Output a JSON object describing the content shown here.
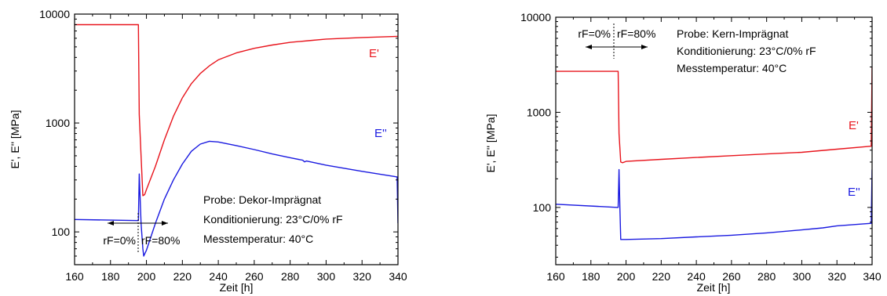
{
  "chart_data": [
    {
      "type": "line",
      "xlabel": "Zeit [h]",
      "ylabel": "E', E'' [MPa]",
      "xlim": [
        160,
        340
      ],
      "ylim": [
        50,
        10000
      ],
      "yscale": "log",
      "xticks": [
        160,
        180,
        200,
        220,
        240,
        260,
        280,
        300,
        320,
        340
      ],
      "xtick_labels": [
        "160",
        "180",
        "200",
        "220",
        "240",
        "260",
        "280",
        "300",
        "320",
        "340"
      ],
      "yticks": [
        100,
        1000,
        10000
      ],
      "ytick_labels": [
        "100",
        "1000",
        "10000"
      ],
      "grid": false,
      "series": [
        {
          "name": "E'",
          "color": "#e8141c",
          "points": [
            [
              160,
              8000
            ],
            [
              195.5,
              8000
            ],
            [
              196,
              1200
            ],
            [
              197,
              500
            ],
            [
              198,
              215
            ],
            [
              199,
              220
            ],
            [
              200,
              245
            ],
            [
              205,
              400
            ],
            [
              210,
              700
            ],
            [
              215,
              1150
            ],
            [
              220,
              1700
            ],
            [
              225,
              2300
            ],
            [
              230,
              2850
            ],
            [
              235,
              3350
            ],
            [
              240,
              3800
            ],
            [
              250,
              4400
            ],
            [
              260,
              4850
            ],
            [
              270,
              5200
            ],
            [
              280,
              5500
            ],
            [
              290,
              5700
            ],
            [
              300,
              5900
            ],
            [
              320,
              6100
            ],
            [
              340,
              6250
            ]
          ]
        },
        {
          "name": "E''",
          "color": "#1a1ae0",
          "points": [
            [
              160,
              130
            ],
            [
              195.5,
              127
            ],
            [
              196,
              340
            ],
            [
              197,
              120
            ],
            [
              198,
              70
            ],
            [
              198.5,
              60
            ],
            [
              200,
              68
            ],
            [
              205,
              120
            ],
            [
              210,
              200
            ],
            [
              215,
              300
            ],
            [
              220,
              420
            ],
            [
              225,
              550
            ],
            [
              230,
              640
            ],
            [
              235,
              680
            ],
            [
              240,
              670
            ],
            [
              250,
              620
            ],
            [
              260,
              570
            ],
            [
              270,
              520
            ],
            [
              280,
              480
            ],
            [
              287,
              455
            ],
            [
              288,
              440
            ],
            [
              289,
              448
            ],
            [
              300,
              410
            ],
            [
              320,
              360
            ],
            [
              339.5,
              320
            ],
            [
              340,
              120
            ]
          ]
        }
      ],
      "annotations": {
        "series_label_1": "E'",
        "series_label_2": "E''",
        "probe": "Probe: Dekor-Imprägnat",
        "konditionierung": "Konditionierung: 23°C/0% rF",
        "messtemperatur": "Messtemperatur: 40°C",
        "rf_left": "rF=0%",
        "rf_right": "rF=80%"
      }
    },
    {
      "type": "line",
      "xlabel": "Zeit [h]",
      "ylabel": "E', E'' [MPa]",
      "xlim": [
        160,
        340
      ],
      "ylim": [
        25,
        10000
      ],
      "yscale": "log",
      "xticks": [
        160,
        180,
        200,
        220,
        240,
        260,
        280,
        300,
        320,
        340
      ],
      "xtick_labels": [
        "160",
        "180",
        "200",
        "220",
        "240",
        "260",
        "280",
        "300",
        "320",
        "340"
      ],
      "yticks": [
        100,
        1000,
        10000
      ],
      "ytick_labels": [
        "100",
        "1000",
        "10000"
      ],
      "grid": false,
      "series": [
        {
          "name": "E'",
          "color": "#e8141c",
          "points": [
            [
              160,
              2700
            ],
            [
              195.5,
              2700
            ],
            [
              196,
              600
            ],
            [
              197,
              300
            ],
            [
              198,
              295
            ],
            [
              200,
              305
            ],
            [
              220,
              320
            ],
            [
              240,
              335
            ],
            [
              260,
              350
            ],
            [
              280,
              365
            ],
            [
              300,
              380
            ],
            [
              320,
              410
            ],
            [
              339.5,
              440
            ],
            [
              340,
              3000
            ]
          ]
        },
        {
          "name": "E''",
          "color": "#1a1ae0",
          "points": [
            [
              160,
              108
            ],
            [
              195.5,
              100
            ],
            [
              196,
              250
            ],
            [
              196.5,
              100
            ],
            [
              197,
              46
            ],
            [
              200,
              46
            ],
            [
              220,
              47
            ],
            [
              240,
              49
            ],
            [
              260,
              51
            ],
            [
              280,
              54
            ],
            [
              300,
              58
            ],
            [
              312,
              61
            ],
            [
              320,
              64
            ],
            [
              339.5,
              68
            ],
            [
              340,
              250
            ]
          ]
        }
      ],
      "annotations": {
        "series_label_1": "E'",
        "series_label_2": "E''",
        "probe": "Probe: Kern-Imprägnat",
        "konditionierung": "Konditionierung: 23°C/0% rF",
        "messtemperatur": "Messtemperatur: 40°C",
        "rf_left": "rF=0%",
        "rf_right": "rF=80%"
      }
    }
  ]
}
